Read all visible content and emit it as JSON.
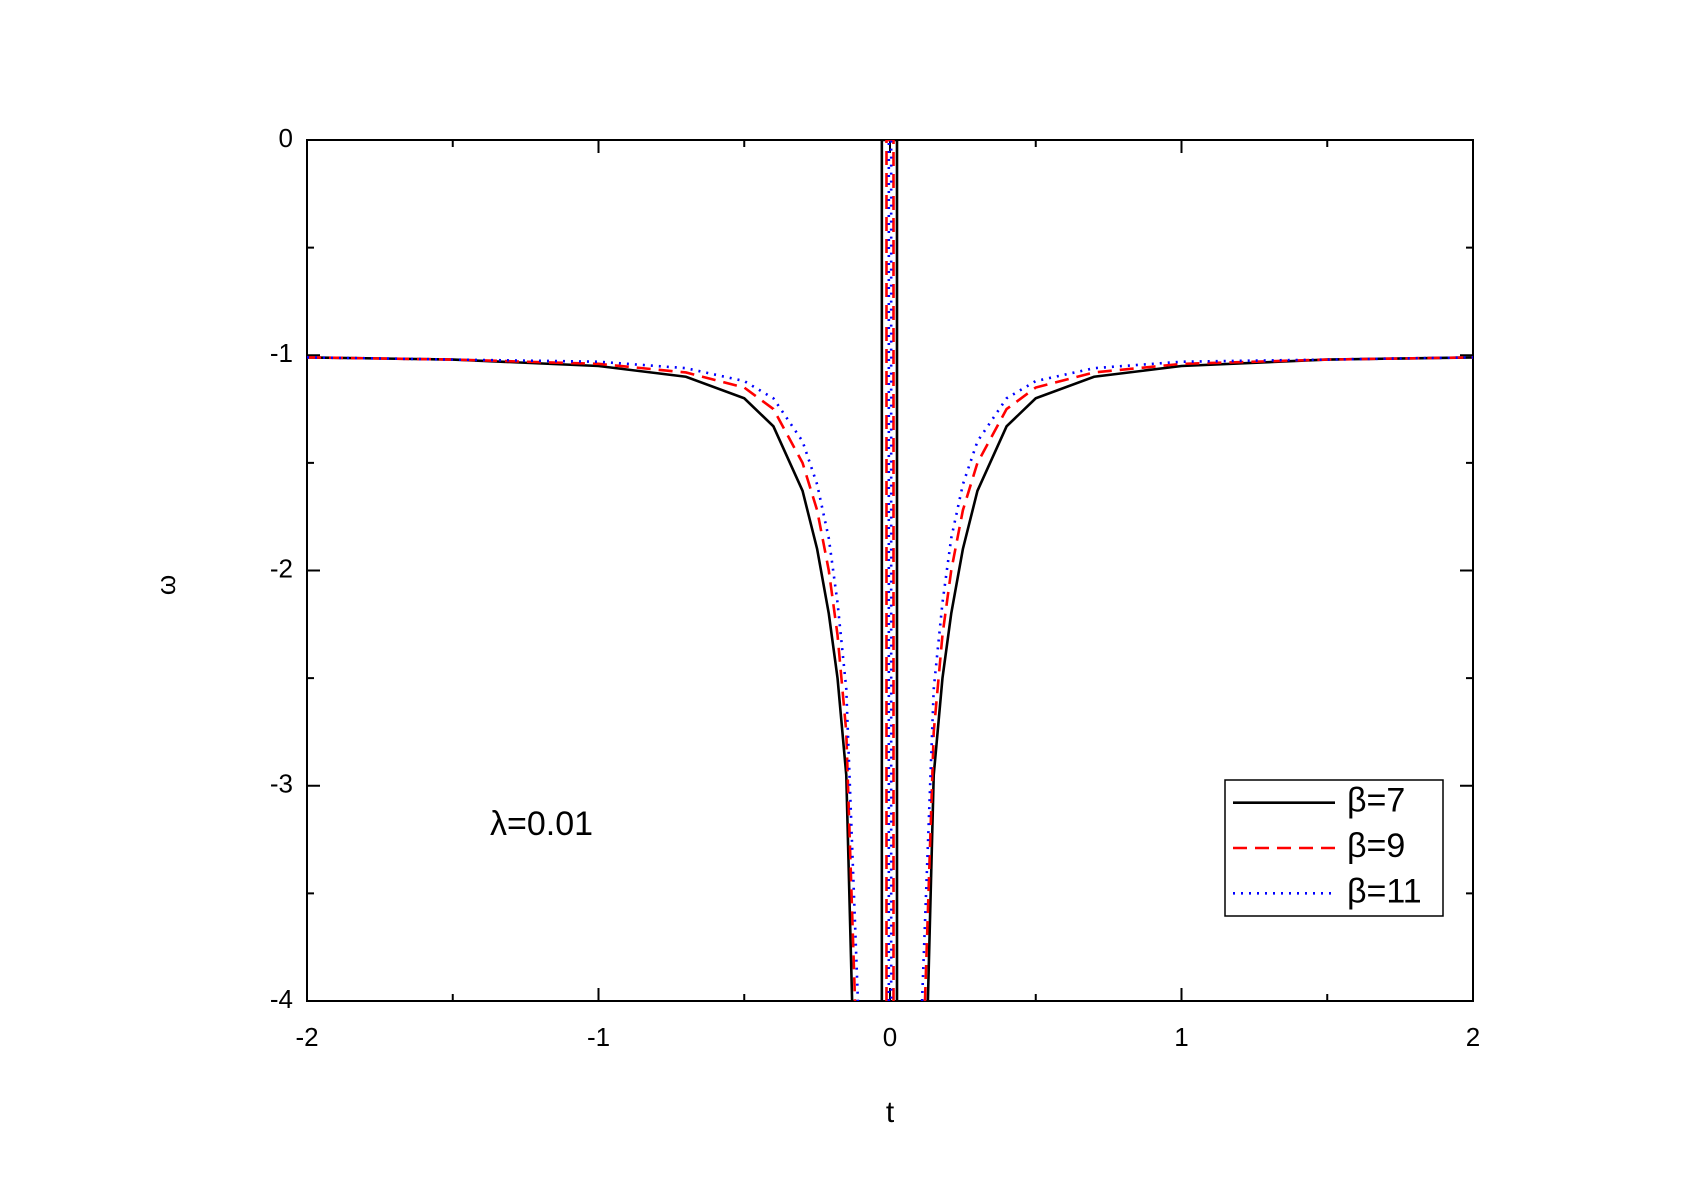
{
  "chart_data": {
    "type": "line",
    "xlabel": "t",
    "ylabel": "ω",
    "annotation": "λ=0.01",
    "xlim": [
      -2,
      2
    ],
    "xticks": [
      -2,
      -1,
      0,
      1,
      2
    ],
    "ylim": [
      -4,
      0
    ],
    "yticks": [
      0,
      -1,
      -2,
      -3,
      -4
    ],
    "legend": "lower right",
    "series": [
      {
        "name": "β=7",
        "color": "#000000",
        "style": "solid",
        "x": [
          -2,
          -1.5,
          -1,
          -0.7,
          -0.5,
          -0.4,
          -0.3,
          -0.25,
          -0.21,
          -0.18,
          -0.15,
          -0.13,
          -0.08,
          -0.028,
          -0.028,
          0.024,
          0.024,
          0.08,
          0.13,
          0.15,
          0.18,
          0.21,
          0.25,
          0.3,
          0.4,
          0.5,
          0.7,
          1,
          1.5,
          2
        ],
        "values": [
          -1.01,
          -1.02,
          -1.05,
          -1.1,
          -1.2,
          -1.33,
          -1.63,
          -1.9,
          -2.2,
          -2.5,
          -2.95,
          -4,
          null,
          -4,
          0,
          0,
          -4,
          null,
          -4,
          -2.95,
          -2.5,
          -2.2,
          -1.9,
          -1.63,
          -1.33,
          -1.2,
          -1.1,
          -1.05,
          -1.02,
          -1.01
        ]
      },
      {
        "name": "β=9",
        "color": "#ff0000",
        "style": "dashed",
        "x": [
          -2,
          -1.5,
          -1,
          -0.7,
          -0.5,
          -0.4,
          -0.3,
          -0.25,
          -0.21,
          -0.18,
          -0.15,
          -0.12,
          -0.08,
          -0.012,
          -0.012,
          0.012,
          0.012,
          0.08,
          0.12,
          0.15,
          0.18,
          0.21,
          0.25,
          0.3,
          0.4,
          0.5,
          0.7,
          1,
          1.5,
          2
        ],
        "values": [
          -1.01,
          -1.02,
          -1.04,
          -1.08,
          -1.15,
          -1.25,
          -1.5,
          -1.72,
          -2.0,
          -2.3,
          -2.75,
          -4,
          null,
          -4,
          0,
          0,
          -4,
          null,
          -4,
          -2.75,
          -2.3,
          -2.0,
          -1.72,
          -1.5,
          -1.25,
          -1.15,
          -1.08,
          -1.04,
          -1.02,
          -1.01
        ]
      },
      {
        "name": "β=11",
        "color": "#0000ff",
        "style": "dotted",
        "x": [
          -2,
          -1.5,
          -1,
          -0.7,
          -0.5,
          -0.4,
          -0.3,
          -0.25,
          -0.21,
          -0.18,
          -0.15,
          -0.11,
          -0.07,
          -0.004,
          -0.004,
          0.004,
          0.004,
          0.07,
          0.11,
          0.15,
          0.18,
          0.21,
          0.25,
          0.3,
          0.4,
          0.5,
          0.7,
          1,
          1.5,
          2
        ],
        "values": [
          -1.01,
          -1.02,
          -1.03,
          -1.06,
          -1.12,
          -1.2,
          -1.4,
          -1.6,
          -1.85,
          -2.15,
          -2.55,
          -4,
          null,
          -4,
          0,
          0,
          -4,
          null,
          -4,
          -2.55,
          -2.15,
          -1.85,
          -1.6,
          -1.4,
          -1.2,
          -1.12,
          -1.06,
          -1.03,
          -1.02,
          -1.01
        ]
      }
    ]
  }
}
